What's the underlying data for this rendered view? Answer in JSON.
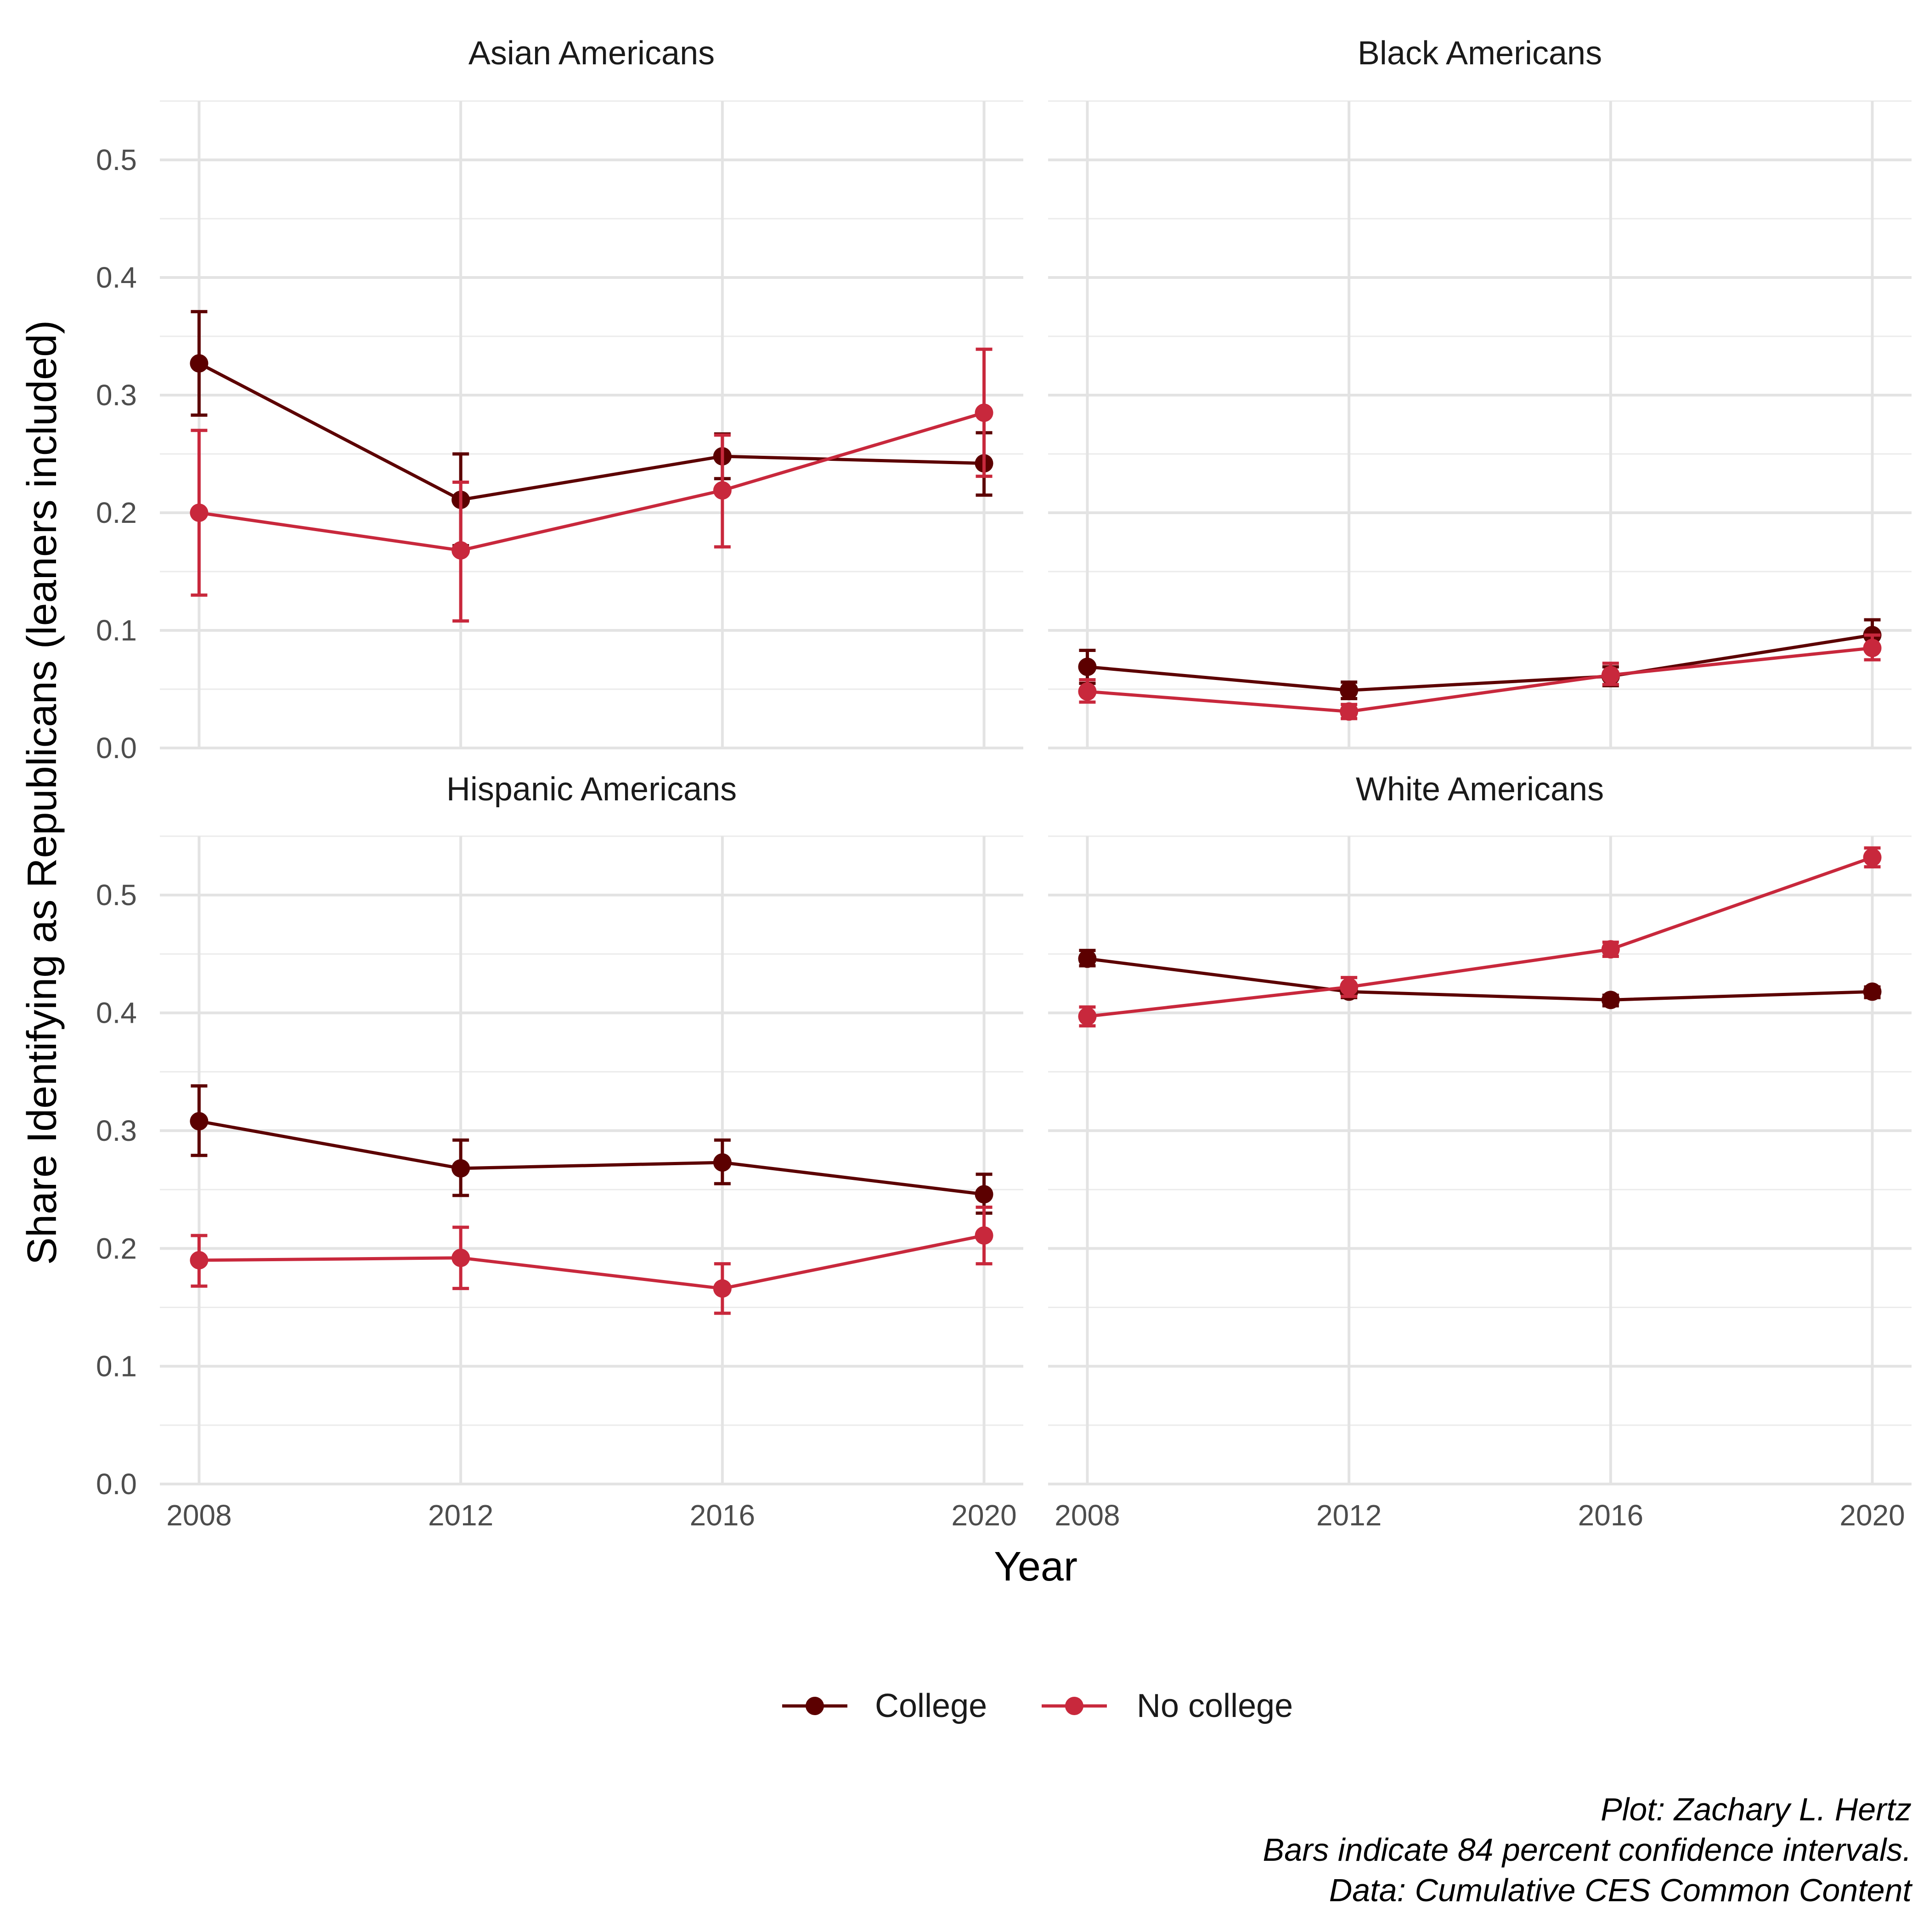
{
  "chart_data": {
    "type": "line",
    "facet_layout": "2x2",
    "ylabel": "Share Identifying as Republicans (leaners included)",
    "xlabel": "Year",
    "x": [
      2008,
      2012,
      2016,
      2020
    ],
    "x_ticks": [
      "2008",
      "2012",
      "2016",
      "2020"
    ],
    "xlim": [
      2007.4,
      2020.6
    ],
    "ylim": [
      0,
      0.55
    ],
    "y_ticks": [
      "0.0",
      "0.1",
      "0.2",
      "0.3",
      "0.4",
      "0.5"
    ],
    "grid": true,
    "error_bars": true,
    "legend_position": "bottom",
    "legend": [
      {
        "name": "College",
        "color": "#5C0000"
      },
      {
        "name": "No college",
        "color": "#C8283C"
      }
    ],
    "caption": [
      "Plot: Zachary L. Hertz",
      "Bars indicate 84 percent confidence intervals.",
      "Data: Cumulative CES Common Content"
    ],
    "panels": [
      {
        "title": "Asian Americans",
        "series": [
          {
            "name": "College",
            "values": [
              0.327,
              0.211,
              0.248,
              0.242
            ],
            "lower": [
              0.283,
              0.172,
              0.229,
              0.215
            ],
            "upper": [
              0.371,
              0.25,
              0.267,
              0.268
            ]
          },
          {
            "name": "No college",
            "values": [
              0.2,
              0.168,
              0.219,
              0.285
            ],
            "lower": [
              0.13,
              0.108,
              0.171,
              0.231
            ],
            "upper": [
              0.27,
              0.226,
              0.266,
              0.339
            ]
          }
        ]
      },
      {
        "title": "Black Americans",
        "series": [
          {
            "name": "College",
            "values": [
              0.069,
              0.049,
              0.061,
              0.096
            ],
            "lower": [
              0.055,
              0.042,
              0.053,
              0.083
            ],
            "upper": [
              0.083,
              0.056,
              0.069,
              0.109
            ]
          },
          {
            "name": "No college",
            "values": [
              0.048,
              0.031,
              0.062,
              0.085
            ],
            "lower": [
              0.039,
              0.025,
              0.054,
              0.075
            ],
            "upper": [
              0.058,
              0.037,
              0.072,
              0.096
            ]
          }
        ]
      },
      {
        "title": "Hispanic Americans",
        "series": [
          {
            "name": "College",
            "values": [
              0.308,
              0.268,
              0.273,
              0.246
            ],
            "lower": [
              0.279,
              0.245,
              0.255,
              0.23
            ],
            "upper": [
              0.338,
              0.292,
              0.292,
              0.263
            ]
          },
          {
            "name": "No college",
            "values": [
              0.19,
              0.192,
              0.166,
              0.211
            ],
            "lower": [
              0.168,
              0.166,
              0.145,
              0.187
            ],
            "upper": [
              0.211,
              0.218,
              0.187,
              0.235
            ]
          }
        ]
      },
      {
        "title": "White Americans",
        "series": [
          {
            "name": "College",
            "values": [
              0.446,
              0.418,
              0.411,
              0.418
            ],
            "lower": [
              0.44,
              0.413,
              0.406,
              0.413
            ],
            "upper": [
              0.453,
              0.423,
              0.415,
              0.422
            ]
          },
          {
            "name": "No college",
            "values": [
              0.397,
              0.422,
              0.454,
              0.532
            ],
            "lower": [
              0.389,
              0.414,
              0.448,
              0.524
            ],
            "upper": [
              0.405,
              0.43,
              0.46,
              0.54
            ]
          }
        ]
      }
    ]
  }
}
